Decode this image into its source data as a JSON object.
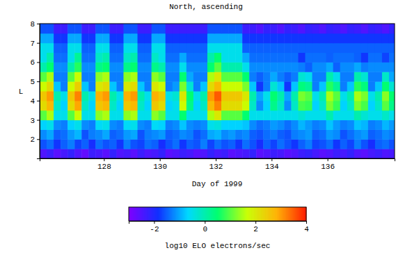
{
  "chart_data": {
    "type": "heatmap",
    "title": "North, ascending",
    "x_label": "Day of 1999",
    "y_label": "L",
    "xlim": [
      125.7,
      138.4
    ],
    "xticks": [
      128,
      130,
      132,
      134,
      136
    ],
    "ylim": [
      1,
      8
    ],
    "yticks": [
      2,
      3,
      4,
      5,
      6,
      7,
      8
    ],
    "x_edges": [
      125.7,
      125.95,
      126.2,
      126.45,
      126.7,
      126.95,
      127.2,
      127.45,
      127.7,
      127.95,
      128.2,
      128.45,
      128.7,
      128.95,
      129.2,
      129.45,
      129.7,
      129.95,
      130.2,
      130.45,
      130.7,
      130.95,
      131.2,
      131.45,
      131.7,
      131.95,
      132.2,
      132.45,
      132.7,
      132.95,
      133.2,
      133.45,
      133.7,
      133.95,
      134.2,
      134.45,
      134.7,
      134.95,
      135.2,
      135.45,
      135.7,
      135.95,
      136.2,
      136.45,
      136.7,
      136.95,
      137.2,
      137.45,
      137.7,
      137.95,
      138.2,
      138.45
    ],
    "y_edges": [
      1,
      1.5,
      2,
      2.5,
      3,
      3.5,
      4,
      4.5,
      5,
      5.5,
      6,
      6.5,
      7,
      7.5,
      8
    ],
    "cells": [
      [
        -2.5,
        -2.3,
        -2.6,
        -2.4,
        -2.2,
        -2.5,
        -2.7,
        -2.3,
        -2.4,
        -2.6,
        -2.2,
        -2.5,
        -2.4,
        -2.6,
        -2.3,
        -2.5,
        -2.4,
        -2.2,
        -2.6,
        -2.5,
        -2.3,
        -2.4,
        -2.6,
        -2.5,
        -2.2,
        -2.4,
        -2.3,
        -2.6,
        -2.5,
        -2.4,
        -2.2,
        -2.6,
        -2.5,
        -2.3,
        -2.4,
        -2.6,
        -2.5,
        -2.3,
        -2.2,
        -2.4,
        -2.6,
        -2.5,
        -2.3,
        -2.4,
        -2.2,
        -2.5,
        -2.6,
        -2.4,
        -2.3,
        -2.5,
        -2.4
      ],
      [
        -1.6,
        -1.4,
        -1.8,
        -1.5,
        -1.3,
        -1.7,
        -1.5,
        -1.9,
        -1.4,
        -1.6,
        -1.5,
        -1.8,
        -1.3,
        -1.6,
        -1.7,
        -1.4,
        -1.5,
        -1.9,
        -1.6,
        -1.4,
        -1.8,
        -1.5,
        -1.6,
        -1.3,
        -1.7,
        -1.4,
        -1.6,
        -1.5,
        -1.8,
        -1.4,
        -1.6,
        -1.9,
        -1.5,
        -1.7,
        -1.4,
        -1.6,
        -1.8,
        -1.5,
        -1.3,
        -1.7,
        -1.6,
        -1.4,
        -1.8,
        -1.5,
        -1.7,
        -1.3,
        -1.6,
        -1.9,
        -1.5,
        -1.4,
        -1.6
      ],
      [
        -1.2,
        -1,
        -1.5,
        -1.4,
        -1.1,
        -0.9,
        -1.6,
        -1.3,
        -1.2,
        -1,
        -1.5,
        -1.4,
        -1.1,
        -1,
        -1.6,
        -1.3,
        -1.2,
        -1.1,
        -1.5,
        -1.4,
        -1.2,
        -1.3,
        -1.6,
        -1.4,
        -1,
        -0.9,
        -1.2,
        -1.1,
        -1.3,
        -1.2,
        -1.5,
        -1.6,
        -1.4,
        -1.3,
        -1.5,
        -1.6,
        -1.3,
        -1.2,
        -1.1,
        -1.5,
        -1.4,
        -1.1,
        -1.2,
        -1.6,
        -1.4,
        -1.2,
        -1.1,
        -1.5,
        -1.4,
        -1.2,
        -1.3
      ],
      [
        -0.7,
        -0.5,
        -1.2,
        -1.3,
        -0.7,
        -0.5,
        -1.2,
        -1.3,
        -0.6,
        -0.5,
        -1.2,
        -1.3,
        -0.6,
        -0.5,
        -1.2,
        -1.3,
        -0.6,
        -0.7,
        -1.3,
        -1.2,
        -0.8,
        -1.2,
        -1.3,
        -1.2,
        -0.5,
        -0.4,
        -0.7,
        -0.7,
        -0.7,
        -0.8,
        -1.2,
        -1.4,
        -1.3,
        -1.1,
        -1.2,
        -1.4,
        -1.2,
        -0.9,
        -1.1,
        -1.3,
        -1.2,
        -0.8,
        -1.1,
        -1.3,
        -1.2,
        -0.8,
        -0.9,
        -1.3,
        -1.2,
        -0.9,
        -1.1
      ],
      [
        1,
        1.5,
        -0.5,
        -0.5,
        1,
        1.7,
        -0.5,
        -0.5,
        1.3,
        1.5,
        -0.5,
        -0.5,
        1.3,
        1.5,
        -0.5,
        -0.5,
        1.3,
        1,
        -0.5,
        -0.5,
        0.5,
        -0.5,
        -0.5,
        -0.5,
        1.5,
        2,
        1,
        1,
        1,
        0.5,
        -0.5,
        -0.5,
        -0.5,
        -0.5,
        -0.5,
        -0.5,
        -0.5,
        -0.3,
        -0.5,
        -0.5,
        -0.5,
        0,
        -0.5,
        -0.5,
        -0.5,
        0,
        -0.3,
        -0.5,
        -0.5,
        -0.2,
        -0.5
      ],
      [
        2.2,
        2.7,
        -0.2,
        -0.7,
        2.2,
        2.9,
        -0.2,
        -0.7,
        2.5,
        2.7,
        -0.2,
        -0.7,
        2.5,
        2.7,
        -0.2,
        -0.7,
        2.5,
        2.2,
        -0.7,
        -0.5,
        1.7,
        0.3,
        -0.7,
        -0.2,
        2.7,
        3.2,
        2.2,
        2.2,
        2.2,
        1.7,
        -0.2,
        -1.2,
        -0.7,
        0.3,
        -0.2,
        -1.2,
        -0.2,
        0.9,
        0.8,
        -0.7,
        -0.2,
        1.2,
        0.8,
        -0.7,
        -0.2,
        1.2,
        0.9,
        -0.7,
        -0.2,
        1,
        0.3
      ],
      [
        2.5,
        3,
        0,
        -0.5,
        2.5,
        3.2,
        0,
        -0.5,
        2.8,
        3,
        0,
        -0.5,
        2.8,
        3,
        0,
        -0.5,
        2.8,
        2.5,
        -0.5,
        -0.3,
        2,
        0.5,
        -0.5,
        0,
        3,
        3.5,
        2.5,
        2.5,
        2.5,
        2,
        0,
        -1,
        -0.5,
        0.5,
        0,
        -1,
        0,
        1.2,
        1,
        -0.5,
        0,
        1.5,
        1,
        -0.5,
        0,
        1.5,
        1.2,
        -0.5,
        0,
        1.3,
        0.5
      ],
      [
        1.7,
        2.2,
        -0.8,
        -1.3,
        1.7,
        2.4,
        -0.8,
        -1.3,
        2,
        2.2,
        -0.8,
        -1.3,
        2,
        2.2,
        -0.8,
        -1.3,
        2,
        1.7,
        -1.3,
        -1.1,
        1.2,
        -0.3,
        -1.3,
        -0.8,
        2.2,
        2.7,
        1.7,
        1.7,
        1.7,
        1.2,
        -0.8,
        -1.8,
        -1.3,
        -0.3,
        -0.8,
        -1.8,
        -0.8,
        0.4,
        0.2,
        -1.3,
        -0.8,
        0.7,
        0.2,
        -1.3,
        -0.8,
        0.7,
        0.4,
        -1.3,
        -0.8,
        0.5,
        -0.3
      ],
      [
        1,
        1.5,
        -1.3,
        -1.3,
        1,
        1.7,
        -1.3,
        -1.3,
        1.3,
        1.5,
        -1.3,
        -1.3,
        1.3,
        1.5,
        -1.3,
        -1.3,
        1.3,
        1,
        -1.3,
        -1.3,
        0.5,
        -1,
        -1.3,
        -1.3,
        1.5,
        2,
        1,
        1,
        1,
        0.5,
        -1.3,
        -1.5,
        -1.3,
        -1,
        -1.3,
        -1.5,
        -1.3,
        -0.3,
        -0.5,
        -1.3,
        -1.3,
        0,
        -0.5,
        -1.3,
        -1.3,
        0,
        -0.3,
        -1.3,
        -1.3,
        -0.2,
        -1
      ],
      [
        0,
        0.5,
        -1.2,
        -1.2,
        0,
        0.7,
        -1.2,
        -1.2,
        0.3,
        0.5,
        -1.2,
        -1.2,
        0.3,
        0.5,
        -1.2,
        -1.2,
        0.3,
        0,
        -1.2,
        -1.2,
        -0.5,
        -1.2,
        -1.2,
        -1.2,
        0.5,
        1,
        0,
        0,
        0,
        -0.5,
        -1.2,
        -1.2,
        -1.2,
        -1.2,
        -1.2,
        -1.2,
        -1.2,
        -1.3,
        -1.5,
        -1.2,
        -1.2,
        -1,
        -1.5,
        -1.2,
        -1.2,
        -1,
        -1.3,
        -1.2,
        -1.2,
        -1.2,
        -1.2
      ],
      [
        -0.5,
        0,
        -1.4,
        -1.4,
        -0.5,
        0.2,
        -1.4,
        -1.4,
        -0.2,
        0,
        -1.4,
        -1.4,
        -0.2,
        0,
        -1.4,
        -1.4,
        -0.2,
        -0.5,
        -1.4,
        -1.4,
        -1,
        -1.4,
        -1.4,
        -1.4,
        0,
        0.5,
        -0.5,
        -0.5,
        -0.5,
        -1,
        -1.4,
        -1.4,
        -1.4,
        -1.4,
        -1.4,
        -1.4,
        -1.4,
        -1.8,
        -1.4,
        -1.4,
        -1.4,
        -1.5,
        -1.4,
        -1.4,
        -1.4,
        -1.5,
        -1.8,
        -1.4,
        -1.4,
        -1.7,
        -1.4
      ],
      [
        -0.5,
        -0.5,
        -1.5,
        -1.5,
        -0.5,
        -0.5,
        -1.5,
        -1.5,
        -0.5,
        -0.5,
        -1.5,
        -1.5,
        -0.5,
        -0.5,
        -1.5,
        -1.5,
        -0.5,
        -0.5,
        -1.5,
        -1.5,
        -1.5,
        -1.5,
        -1.5,
        -1.5,
        -0.5,
        -0.5,
        -0.5,
        -0.5,
        -0.5,
        -1.5,
        -1.5,
        -1.5,
        -1.5,
        -1.5,
        -1.5,
        -1.5,
        -1.5,
        -1.5,
        -1.5,
        -1.5,
        -1.5,
        -1.5,
        -1.5,
        -1.5,
        -1.5,
        -1.5,
        -1.5,
        -1.5,
        -1.5,
        -1.5,
        -1.5
      ],
      [
        -1,
        -1,
        -1.8,
        -1.8,
        -1,
        -1,
        -1.8,
        -1.8,
        -1,
        -1,
        -1.8,
        -1.8,
        -1,
        -1,
        -1.8,
        -1.8,
        -1,
        -1,
        -1.8,
        -1.8,
        -1.8,
        -1.8,
        -1.8,
        -1.8,
        -1,
        -1,
        -1,
        -1,
        -1,
        -1.8,
        -1.8,
        -1.8,
        -1.8,
        -1.8,
        -1.8,
        -1.8,
        -1.8,
        -1.8,
        -1.8,
        -1.8,
        -1.8,
        -1.8,
        -1.8,
        -1.8,
        -1.8,
        -1.8,
        -1.8,
        -1.8,
        -1.8,
        -1.8,
        -1.8
      ],
      [
        -1.6,
        -1.6,
        -2.3,
        -2.3,
        -1.6,
        -1.6,
        -2.3,
        -2.3,
        -1.6,
        -1.6,
        -2.3,
        -2.3,
        -1.6,
        -1.6,
        -2.3,
        -2.3,
        -1.6,
        -1.6,
        -2.3,
        -2.3,
        -2.3,
        -2.3,
        -2.3,
        -2.3,
        -1.6,
        -1.6,
        -1.6,
        -1.6,
        -1.6,
        -2.3,
        -2.3,
        -2.5,
        -2.2,
        -2.3,
        -2.5,
        -2.2,
        -2.3,
        -2.5,
        -2.2,
        -2.3,
        -2.5,
        -2.2,
        -2.3,
        -2.5,
        -2.2,
        -2.3,
        -2.5,
        -2.2,
        -2.3,
        -2.5,
        -2.2
      ]
    ],
    "colorbar": {
      "label": "log10 ELO electrons/sec",
      "range": [
        -3,
        4
      ],
      "ticks": [
        -2,
        0,
        2,
        4
      ]
    }
  }
}
